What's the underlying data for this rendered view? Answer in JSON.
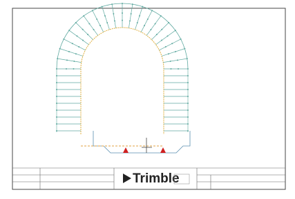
{
  "logo": {
    "text": "Trimble"
  }
}
